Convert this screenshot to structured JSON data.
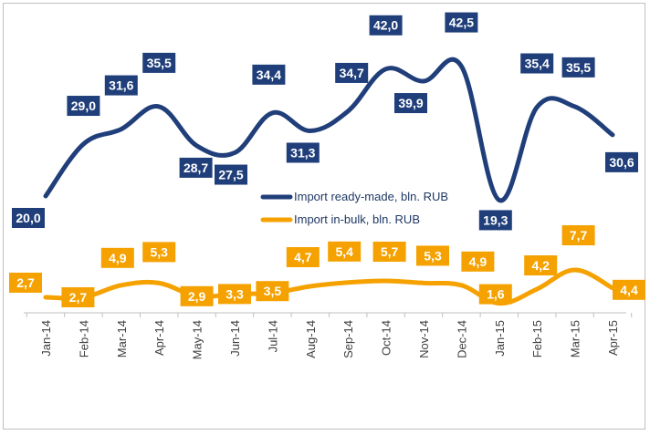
{
  "chart_data": {
    "type": "line",
    "categories": [
      "Jan-14",
      "Feb-14",
      "Mar-14",
      "Apr-14",
      "May-14",
      "Jun-14",
      "Jul-14",
      "Aug-14",
      "Sep-14",
      "Oct-14",
      "Nov-14",
      "Dec-14",
      "Jan-15",
      "Feb-15",
      "Mar-15",
      "Apr-15"
    ],
    "series": [
      {
        "name": "Import ready-made, bln. RUB",
        "color": "#203f7a",
        "values": [
          20.0,
          29.0,
          31.6,
          35.5,
          28.7,
          27.5,
          34.4,
          31.3,
          34.7,
          42.0,
          39.9,
          42.5,
          19.3,
          35.4,
          35.5,
          30.6
        ],
        "labels": [
          "20,0",
          "29,0",
          "31,6",
          "35,5",
          "28,7",
          "27,5",
          "34,4",
          "31,3",
          "34,7",
          "42,0",
          "39,9",
          "42,5",
          "19,3",
          "35,4",
          "35,5",
          "30,6"
        ]
      },
      {
        "name": "Import in-bulk, bln. RUB",
        "color": "#f5a100",
        "values": [
          2.7,
          2.7,
          4.9,
          5.3,
          2.9,
          3.3,
          3.5,
          4.7,
          5.4,
          5.7,
          5.3,
          4.9,
          1.6,
          4.2,
          7.7,
          4.4
        ],
        "labels": [
          "2,7",
          "2,7",
          "4,9",
          "5,3",
          "2,9",
          "3,3",
          "3,5",
          "4,7",
          "5,4",
          "5,7",
          "5,3",
          "4,9",
          "1,6",
          "4,2",
          "7,7",
          "4,4"
        ]
      }
    ],
    "legend_position": "center",
    "grid": false,
    "axis_color": "#bfbfbf"
  }
}
